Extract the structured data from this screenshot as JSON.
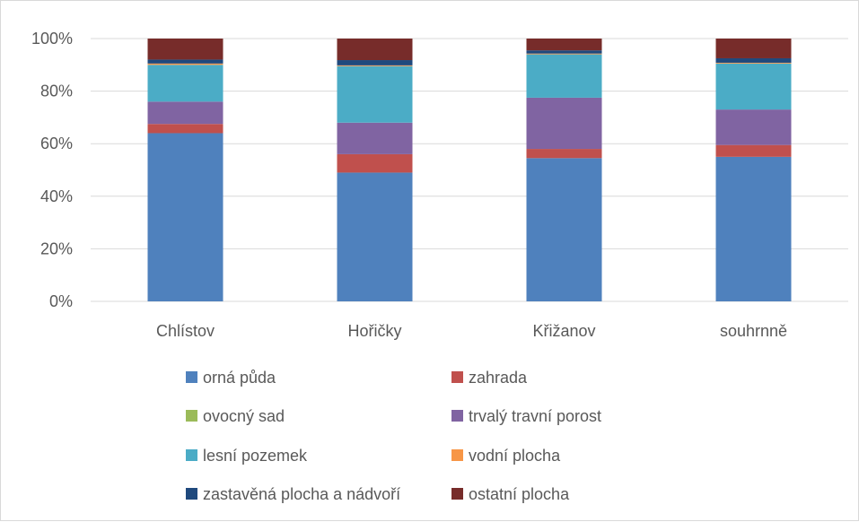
{
  "chart_data": {
    "type": "bar",
    "stacked": true,
    "percent_stacked": true,
    "categories": [
      "Chlístov",
      "Hořičky",
      "Křižanov",
      "souhrnně"
    ],
    "series": [
      {
        "name": "orná půda",
        "color": "#4f81bd",
        "values": [
          64,
          49,
          54.5,
          55
        ]
      },
      {
        "name": "zahrada",
        "color": "#c0504d",
        "values": [
          3.5,
          7,
          3.5,
          4.5
        ]
      },
      {
        "name": "ovocný sad",
        "color": "#9bbb59",
        "values": [
          0,
          0,
          0,
          0
        ]
      },
      {
        "name": "trvalý travní porost",
        "color": "#8064a2",
        "values": [
          8.5,
          12,
          19.5,
          13.5
        ]
      },
      {
        "name": "lesní pozemek",
        "color": "#4bacc6",
        "values": [
          14,
          21.5,
          16.5,
          17.5
        ]
      },
      {
        "name": "vodní plocha",
        "color": "#f79646",
        "values": [
          0.5,
          0.3,
          0.3,
          0.3
        ]
      },
      {
        "name": "zastavěná plocha a nádvoří",
        "color": "#1f497d",
        "values": [
          1.5,
          2,
          1.2,
          1.7
        ]
      },
      {
        "name": "ostatní plocha",
        "color": "#772c2a",
        "values": [
          8,
          8.2,
          4.5,
          7.5
        ]
      }
    ],
    "y_ticks": [
      "0%",
      "20%",
      "40%",
      "60%",
      "80%",
      "100%"
    ],
    "ylim": [
      0,
      100
    ],
    "grid": true,
    "legend": "bottom"
  }
}
